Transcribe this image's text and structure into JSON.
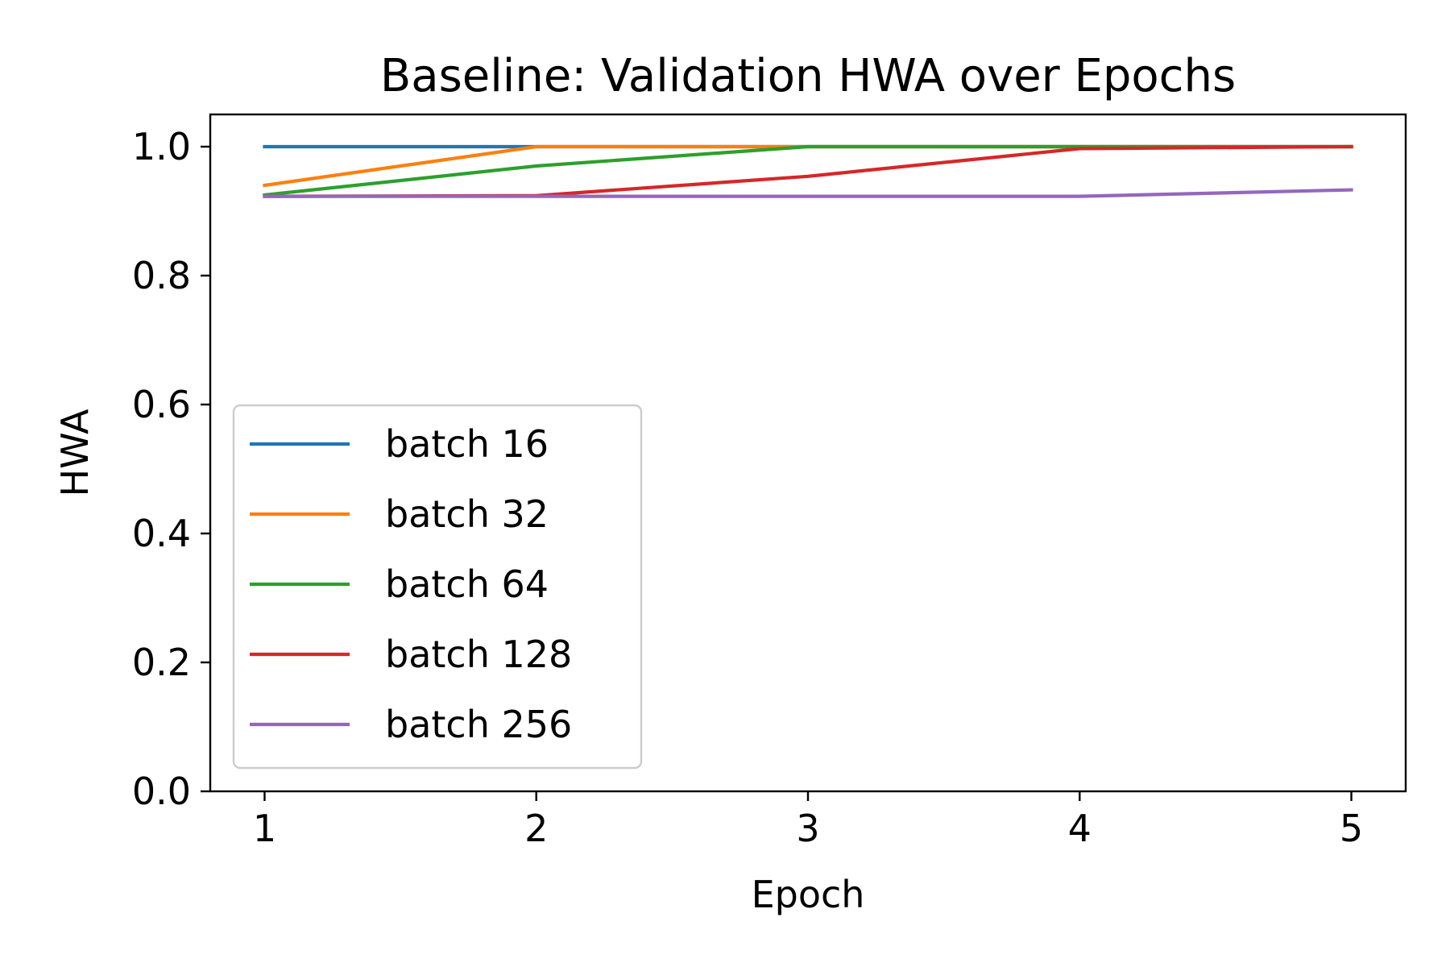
{
  "chart_data": {
    "type": "line",
    "title": "Baseline: Validation HWA over Epochs",
    "xlabel": "Epoch",
    "ylabel": "HWA",
    "x": [
      1,
      2,
      3,
      4,
      5
    ],
    "xlim": [
      0.8,
      5.2
    ],
    "ylim": [
      0.0,
      1.05
    ],
    "xticks": [
      "1",
      "2",
      "3",
      "4",
      "5"
    ],
    "yticks": [
      "0.0",
      "0.2",
      "0.4",
      "0.6",
      "0.8",
      "1.0"
    ],
    "grid": false,
    "legend_position": "center-left",
    "series": [
      {
        "name": "batch 16",
        "color": "#1f77b4",
        "values": [
          1.0,
          1.0,
          1.0,
          1.0,
          1.0
        ]
      },
      {
        "name": "batch 32",
        "color": "#ff7f0e",
        "values": [
          0.94,
          1.0,
          1.0,
          1.0,
          1.0
        ]
      },
      {
        "name": "batch 64",
        "color": "#2ca02c",
        "values": [
          0.925,
          0.97,
          1.0,
          1.0,
          1.0
        ]
      },
      {
        "name": "batch 128",
        "color": "#d62728",
        "values": [
          0.923,
          0.924,
          0.954,
          0.997,
          1.0
        ]
      },
      {
        "name": "batch 256",
        "color": "#9467bd",
        "values": [
          0.923,
          0.923,
          0.923,
          0.923,
          0.933
        ]
      }
    ]
  }
}
